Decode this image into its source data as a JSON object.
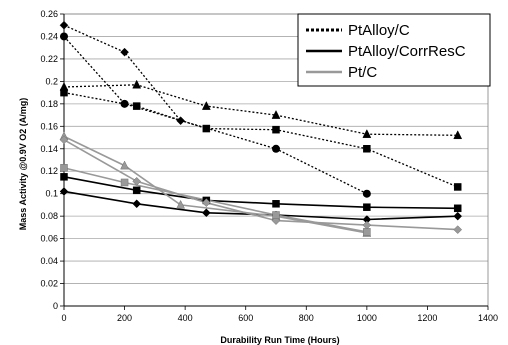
{
  "chart_data": {
    "type": "line",
    "title": "",
    "xlabel": "Durability Run Time (Hours)",
    "ylabel": "Mass Activity @0.9V O2 (A/mg)",
    "xlim": [
      0,
      1400
    ],
    "ylim": [
      0,
      0.26
    ],
    "x_ticks": [
      "0",
      "200",
      "400",
      "600",
      "800",
      "1000",
      "1200",
      "1400"
    ],
    "y_ticks": [
      "0",
      "0.02",
      "0.04",
      "0.06",
      "0.08",
      "0.1",
      "0.12",
      "0.14",
      "0.16",
      "0.18",
      "0.2",
      "0.22",
      "0.24",
      "0.26"
    ],
    "grid": "horizontal",
    "legend_position": "top-right",
    "legend": [
      {
        "label": "PtAlloy/C",
        "style": "dotted",
        "color": "#000000"
      },
      {
        "label": "PtAlloy/CorrResC",
        "style": "solid",
        "color": "#000000"
      },
      {
        "label": "Pt/C",
        "style": "solid",
        "color": "#999999"
      }
    ],
    "series": [
      {
        "group": "PtAlloy/C",
        "marker": "diamond",
        "color": "#000000",
        "dash": "dotted",
        "points": [
          [
            0,
            0.25
          ],
          [
            200,
            0.226
          ],
          [
            385,
            0.165
          ]
        ]
      },
      {
        "group": "PtAlloy/C",
        "marker": "circle",
        "color": "#000000",
        "dash": "dotted",
        "points": [
          [
            0,
            0.24
          ],
          [
            200,
            0.18
          ],
          [
            700,
            0.14
          ],
          [
            1000,
            0.1
          ]
        ]
      },
      {
        "group": "PtAlloy/C",
        "marker": "triangle",
        "color": "#000000",
        "dash": "dotted",
        "points": [
          [
            0,
            0.195
          ],
          [
            240,
            0.197
          ],
          [
            470,
            0.178
          ],
          [
            700,
            0.17
          ],
          [
            1000,
            0.153
          ],
          [
            1300,
            0.152
          ]
        ]
      },
      {
        "group": "PtAlloy/C",
        "marker": "square",
        "color": "#000000",
        "dash": "dotted",
        "points": [
          [
            0,
            0.19
          ],
          [
            240,
            0.178
          ],
          [
            470,
            0.158
          ],
          [
            700,
            0.157
          ],
          [
            1000,
            0.14
          ],
          [
            1300,
            0.106
          ]
        ]
      },
      {
        "group": "PtAlloy/CorrResC",
        "marker": "square",
        "color": "#000000",
        "dash": "solid",
        "points": [
          [
            0,
            0.115
          ],
          [
            240,
            0.103
          ],
          [
            470,
            0.094
          ],
          [
            700,
            0.091
          ],
          [
            1000,
            0.088
          ],
          [
            1300,
            0.087
          ]
        ]
      },
      {
        "group": "PtAlloy/CorrResC",
        "marker": "diamond",
        "color": "#000000",
        "dash": "solid",
        "points": [
          [
            0,
            0.102
          ],
          [
            240,
            0.091
          ],
          [
            470,
            0.083
          ],
          [
            700,
            0.081
          ],
          [
            1000,
            0.077
          ],
          [
            1300,
            0.08
          ]
        ]
      },
      {
        "group": "Pt/C",
        "marker": "triangle",
        "color": "#999999",
        "dash": "solid",
        "points": [
          [
            0,
            0.151
          ],
          [
            200,
            0.125
          ],
          [
            385,
            0.09
          ],
          [
            700,
            0.08
          ],
          [
            1000,
            0.065
          ]
        ]
      },
      {
        "group": "Pt/C",
        "marker": "diamond",
        "color": "#999999",
        "dash": "solid",
        "points": [
          [
            0,
            0.148
          ],
          [
            240,
            0.111
          ],
          [
            470,
            0.092
          ],
          [
            700,
            0.076
          ],
          [
            1000,
            0.072
          ],
          [
            1300,
            0.068
          ]
        ]
      },
      {
        "group": "Pt/C",
        "marker": "square",
        "color": "#999999",
        "dash": "solid",
        "points": [
          [
            0,
            0.123
          ],
          [
            200,
            0.11
          ],
          [
            700,
            0.081
          ],
          [
            1000,
            0.066
          ]
        ]
      }
    ]
  }
}
